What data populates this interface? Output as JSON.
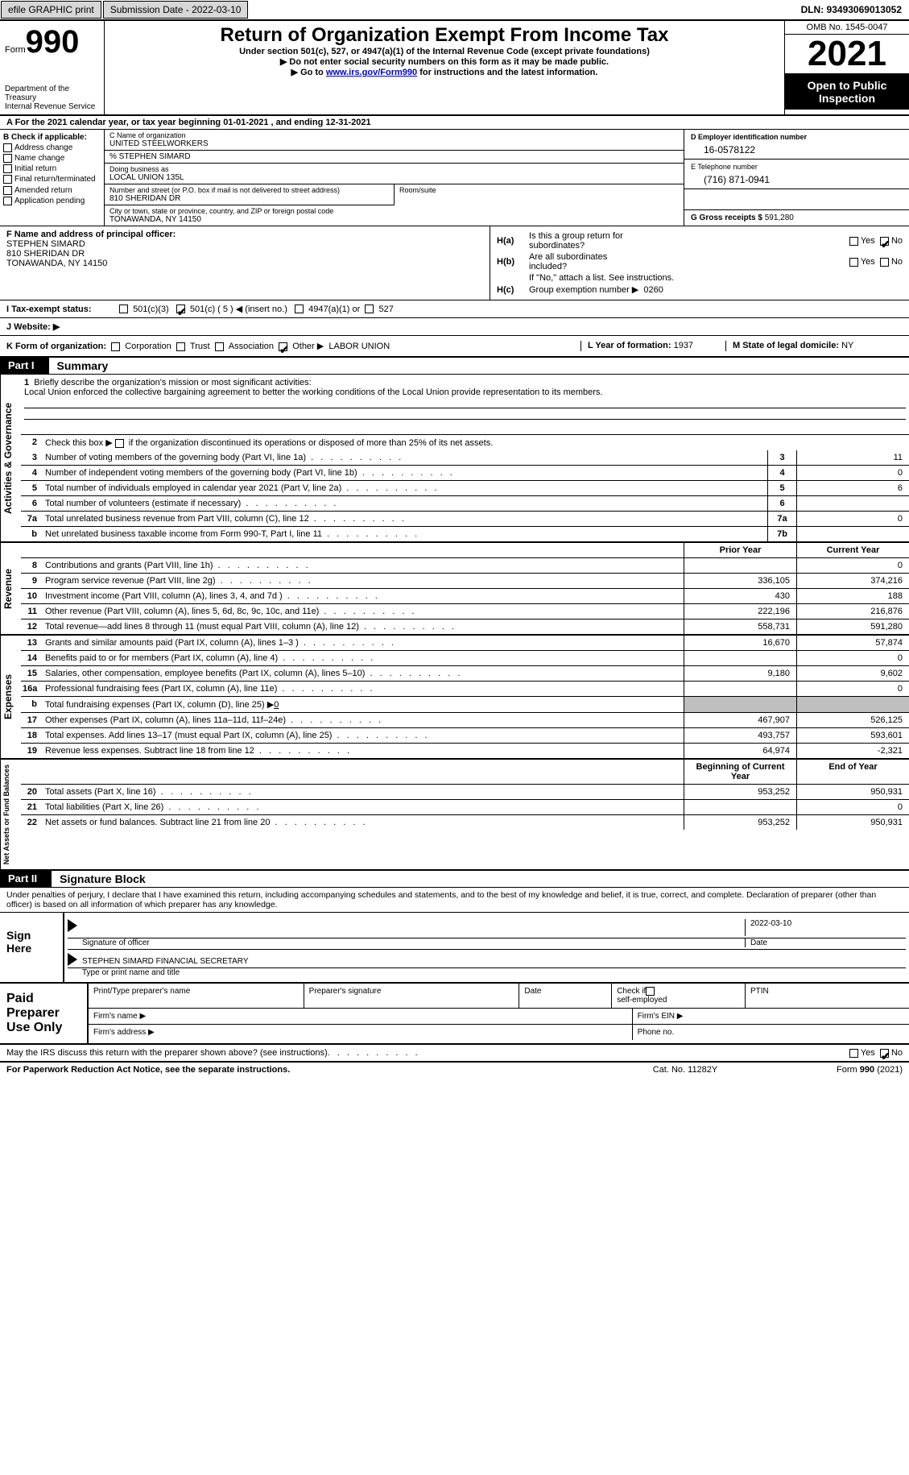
{
  "topbar": {
    "efile": "efile GRAPHIC print",
    "subdate_label": "Submission Date - 2022-03-10",
    "dln": "DLN: 93493069013052"
  },
  "header": {
    "form_word": "Form",
    "form_num": "990",
    "title": "Return of Organization Exempt From Income Tax",
    "subtitle": "Under section 501(c), 527, or 4947(a)(1) of the Internal Revenue Code (except private foundations)",
    "warn": "▶ Do not enter social security numbers on this form as it may be made public.",
    "goto_pre": "▶ Go to ",
    "goto_link": "www.irs.gov/Form990",
    "goto_post": " for instructions and the latest information.",
    "dept": "Department of the Treasury",
    "irs": "Internal Revenue Service",
    "omb": "OMB No. 1545-0047",
    "year": "2021",
    "otp1": "Open to Public",
    "otp2": "Inspection"
  },
  "rowA": "A  For the 2021 calendar year, or tax year beginning 01-01-2021    , and ending 12-31-2021",
  "sectionB": {
    "b_label": "B Check if applicable:",
    "opts": [
      "Address change",
      "Name change",
      "Initial return",
      "Final return/terminated",
      "Amended return",
      "Application pending"
    ],
    "c_label": "C Name of organization",
    "c_name": "UNITED STEELWORKERS",
    "care_of": "% STEPHEN SIMARD",
    "dba_label": "Doing business as",
    "dba": "LOCAL UNION 135L",
    "street_label": "Number and street (or P.O. box if mail is not delivered to street address)",
    "street": "810 SHERIDAN DR",
    "room_label": "Room/suite",
    "city_label": "City or town, state or province, country, and ZIP or foreign postal code",
    "city": "TONAWANDA, NY  14150",
    "d_label": "D Employer identification number",
    "ein": "16-0578122",
    "e_label": "E Telephone number",
    "phone": "(716) 871-0941",
    "g_label": "G Gross receipts $",
    "g_val": "591,280"
  },
  "sectionF": {
    "f_label": "F Name and address of principal officer:",
    "name": "STEPHEN SIMARD",
    "street": "810 SHERIDAN DR",
    "city": "TONAWANDA, NY  14150"
  },
  "sectionH": {
    "ha_lbl": "H(a)",
    "ha_txt1": "Is this a group return for",
    "ha_txt2": "subordinates?",
    "hb_lbl": "H(b)",
    "hb_txt1": "Are all subordinates",
    "hb_txt2": "included?",
    "hb_note": "If \"No,\" attach a list. See instructions.",
    "hc_lbl": "H(c)",
    "hc_txt": "Group exemption number ▶",
    "hc_val": "0260",
    "yes": "Yes",
    "no": "No"
  },
  "sectionI": {
    "label": "I   Tax-exempt status:",
    "o1": "501(c)(3)",
    "o2": "501(c) ( 5 ) ◀ (insert no.)",
    "o3": "4947(a)(1) or",
    "o4": "527"
  },
  "sectionJ": "J   Website: ▶",
  "sectionK": {
    "k_label": "K Form of organization:",
    "opts": [
      "Corporation",
      "Trust",
      "Association",
      "Other ▶"
    ],
    "other_val": "LABOR UNION",
    "l_label": "L Year of formation:",
    "l_val": "1937",
    "m_label": "M State of legal domicile:",
    "m_val": "NY"
  },
  "part1": {
    "tag": "Part I",
    "title": "Summary"
  },
  "summary": {
    "q1_label": "1",
    "q1_text": "Briefly describe the organization's mission or most significant activities:",
    "q1_val": "Local Union enforced the collective bargaining agreement to better the working conditions of the Local Union provide representation to its members.",
    "q2": "Check this box ▶        if the organization discontinued its operations or disposed of more than 25% of its net assets.",
    "rows_ag": [
      {
        "n": "3",
        "t": "Number of voting members of the governing body (Part VI, line 1a)",
        "box": "3",
        "v": "11"
      },
      {
        "n": "4",
        "t": "Number of independent voting members of the governing body (Part VI, line 1b)",
        "box": "4",
        "v": "0"
      },
      {
        "n": "5",
        "t": "Total number of individuals employed in calendar year 2021 (Part V, line 2a)",
        "box": "5",
        "v": "6"
      },
      {
        "n": "6",
        "t": "Total number of volunteers (estimate if necessary)",
        "box": "6",
        "v": ""
      },
      {
        "n": "7a",
        "t": "Total unrelated business revenue from Part VIII, column (C), line 12",
        "box": "7a",
        "v": "0"
      },
      {
        "n": "b",
        "t": "Net unrelated business taxable income from Form 990-T, Part I, line 11",
        "box": "7b",
        "v": ""
      }
    ],
    "col_prior": "Prior Year",
    "col_current": "Current Year",
    "rows_rev": [
      {
        "n": "8",
        "t": "Contributions and grants (Part VIII, line 1h)",
        "p": "",
        "c": "0"
      },
      {
        "n": "9",
        "t": "Program service revenue (Part VIII, line 2g)",
        "p": "336,105",
        "c": "374,216"
      },
      {
        "n": "10",
        "t": "Investment income (Part VIII, column (A), lines 3, 4, and 7d )",
        "p": "430",
        "c": "188"
      },
      {
        "n": "11",
        "t": "Other revenue (Part VIII, column (A), lines 5, 6d, 8c, 9c, 10c, and 11e)",
        "p": "222,196",
        "c": "216,876"
      },
      {
        "n": "12",
        "t": "Total revenue—add lines 8 through 11 (must equal Part VIII, column (A), line 12)",
        "p": "558,731",
        "c": "591,280"
      }
    ],
    "rows_exp": [
      {
        "n": "13",
        "t": "Grants and similar amounts paid (Part IX, column (A), lines 1–3 )",
        "p": "16,670",
        "c": "57,874"
      },
      {
        "n": "14",
        "t": "Benefits paid to or for members (Part IX, column (A), line 4)",
        "p": "",
        "c": "0"
      },
      {
        "n": "15",
        "t": "Salaries, other compensation, employee benefits (Part IX, column (A), lines 5–10)",
        "p": "9,180",
        "c": "9,602"
      },
      {
        "n": "16a",
        "t": "Professional fundraising fees (Part IX, column (A), line 11e)",
        "p": "",
        "c": "0"
      }
    ],
    "row_16b": {
      "n": "b",
      "t": "Total fundraising expenses (Part IX, column (D), line 25) ▶",
      "v": "0"
    },
    "rows_exp2": [
      {
        "n": "17",
        "t": "Other expenses (Part IX, column (A), lines 11a–11d, 11f–24e)",
        "p": "467,907",
        "c": "526,125"
      },
      {
        "n": "18",
        "t": "Total expenses. Add lines 13–17 (must equal Part IX, column (A), line 25)",
        "p": "493,757",
        "c": "593,601"
      },
      {
        "n": "19",
        "t": "Revenue less expenses. Subtract line 18 from line 12",
        "p": "64,974",
        "c": "-2,321"
      }
    ],
    "col_begin": "Beginning of Current Year",
    "col_end": "End of Year",
    "rows_na": [
      {
        "n": "20",
        "t": "Total assets (Part X, line 16)",
        "p": "953,252",
        "c": "950,931"
      },
      {
        "n": "21",
        "t": "Total liabilities (Part X, line 26)",
        "p": "",
        "c": "0"
      },
      {
        "n": "22",
        "t": "Net assets or fund balances. Subtract line 21 from line 20",
        "p": "953,252",
        "c": "950,931"
      }
    ],
    "side_ag": "Activities & Governance",
    "side_rev": "Revenue",
    "side_exp": "Expenses",
    "side_na": "Net Assets or Fund Balances"
  },
  "part2": {
    "tag": "Part II",
    "title": "Signature Block"
  },
  "sig": {
    "declare": "Under penalties of perjury, I declare that I have examined this return, including accompanying schedules and statements, and to the best of my knowledge and belief, it is true, correct, and complete. Declaration of preparer (other than officer) is based on all information of which preparer has any knowledge.",
    "sign_here": "Sign Here",
    "sig_officer_lbl": "Signature of officer",
    "date_lbl": "Date",
    "date_val": "2022-03-10",
    "name_title": "STEPHEN SIMARD  FINANCIAL SECRETARY",
    "name_title_lbl": "Type or print name and title"
  },
  "prep": {
    "label": "Paid Preparer Use Only",
    "c1": "Print/Type preparer's name",
    "c2": "Preparer's signature",
    "c3": "Date",
    "c4a": "Check        if",
    "c4b": "self-employed",
    "c5": "PTIN",
    "firm_name": "Firm's name    ▶",
    "firm_ein": "Firm's EIN ▶",
    "firm_addr": "Firm's address ▶",
    "phone": "Phone no."
  },
  "discuss": {
    "text": "May the IRS discuss this return with the preparer shown above? (see instructions)",
    "yes": "Yes",
    "no": "No"
  },
  "footer": {
    "left": "For Paperwork Reduction Act Notice, see the separate instructions.",
    "mid": "Cat. No. 11282Y",
    "right": "Form 990 (2021)"
  }
}
